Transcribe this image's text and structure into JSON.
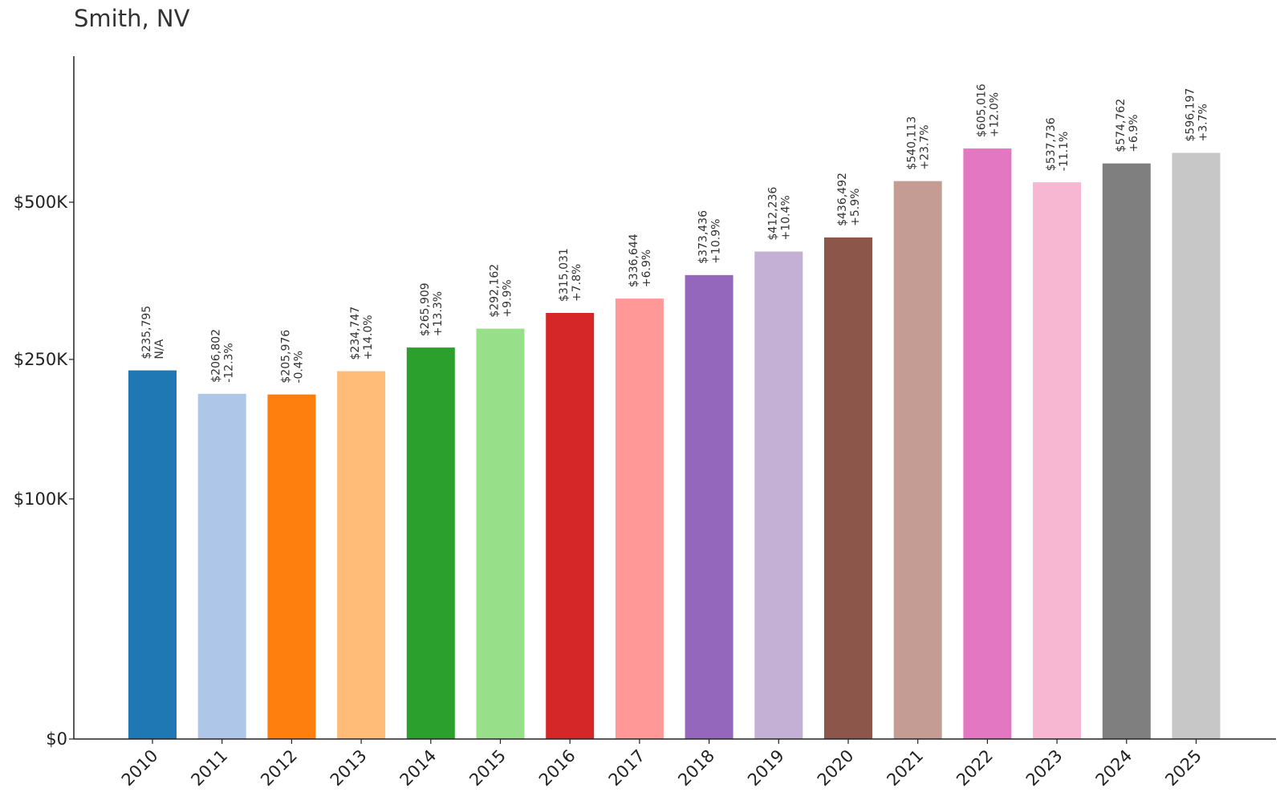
{
  "chart_data": {
    "type": "bar",
    "title": "Smith, NV",
    "xlabel": "",
    "ylabel": "",
    "y_scale": "sqrt",
    "ylim": [
      0,
      640000
    ],
    "yticks": [
      0,
      100000,
      250000,
      500000
    ],
    "ytick_labels": [
      "$0",
      "$100K",
      "$250K",
      "$500K"
    ],
    "grid": false,
    "categories": [
      "2010",
      "2011",
      "2012",
      "2013",
      "2014",
      "2015",
      "2016",
      "2017",
      "2018",
      "2019",
      "2020",
      "2021",
      "2022",
      "2023",
      "2024",
      "2025"
    ],
    "values": [
      235795,
      206802,
      205976,
      234747,
      265909,
      292162,
      315031,
      336644,
      373436,
      412236,
      436492,
      540113,
      605016,
      537736,
      574762,
      596197
    ],
    "value_labels": [
      "$235,795",
      "$206,802",
      "$205,976",
      "$234,747",
      "$265,909",
      "$292,162",
      "$315,031",
      "$336,644",
      "$373,436",
      "$412,236",
      "$436,492",
      "$540,113",
      "$605,016",
      "$537,736",
      "$574,762",
      "$596,197"
    ],
    "change_labels": [
      "N/A",
      "-12.3%",
      "-0.4%",
      "+14.0%",
      "+13.3%",
      "+9.9%",
      "+7.8%",
      "+6.9%",
      "+10.9%",
      "+10.4%",
      "+5.9%",
      "+23.7%",
      "+12.0%",
      "-11.1%",
      "+6.9%",
      "+3.7%"
    ],
    "colors": [
      "#1f77b4",
      "#aec7e8",
      "#ff7f0e",
      "#ffbb78",
      "#2ca02c",
      "#98df8a",
      "#d62728",
      "#ff9896",
      "#9467bd",
      "#c5b0d5",
      "#8c564b",
      "#c49c94",
      "#e377c2",
      "#f7b6d2",
      "#7f7f7f",
      "#c7c7c7"
    ]
  }
}
